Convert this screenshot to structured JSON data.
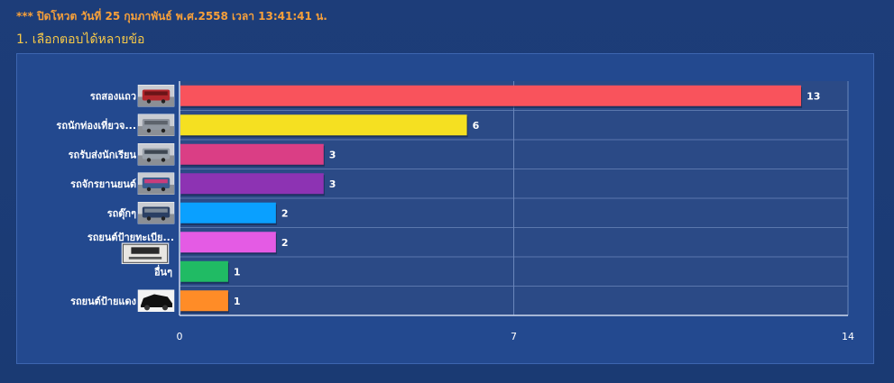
{
  "header": {
    "notice": "*** ปิดโหวต วันที่ 25 กุมภาพันธ์ พ.ศ.2558 เวลา 13:41:41 น.",
    "question": "1. เลือกตอบได้หลายข้อ"
  },
  "chart_data": {
    "type": "bar",
    "orientation": "horizontal",
    "categories": [
      "รถสองแถว",
      "รถนักท่องเที่ยวจ...",
      "รถรับส่งนักเรียน",
      "รถจักรยานยนต์",
      "รถตุ๊กๆ",
      "รถยนต์ป้ายทะเบีย...",
      "อื่นๆ",
      "รถยนต์ป้ายแดง"
    ],
    "values": [
      13,
      6,
      3,
      3,
      2,
      2,
      1,
      1
    ],
    "colors": [
      "#f9535c",
      "#f5e021",
      "#da3e85",
      "#8d33b3",
      "#0aa0ff",
      "#e45be4",
      "#20bb64",
      "#ff8c27"
    ],
    "thumbnail_icons": [
      "songthaew-photo-icon",
      "tour-van-photo-icon",
      "school-van-photo-icon",
      "motorcycle-photo-icon",
      "tuk-tuk-photo-icon",
      "license-plate-photo-icon",
      "",
      "red-plate-car-photo-icon"
    ],
    "xlim": [
      0,
      14
    ],
    "xticks": [
      0,
      7,
      14
    ],
    "grid": true,
    "title": "",
    "xlabel": "",
    "ylabel": ""
  }
}
